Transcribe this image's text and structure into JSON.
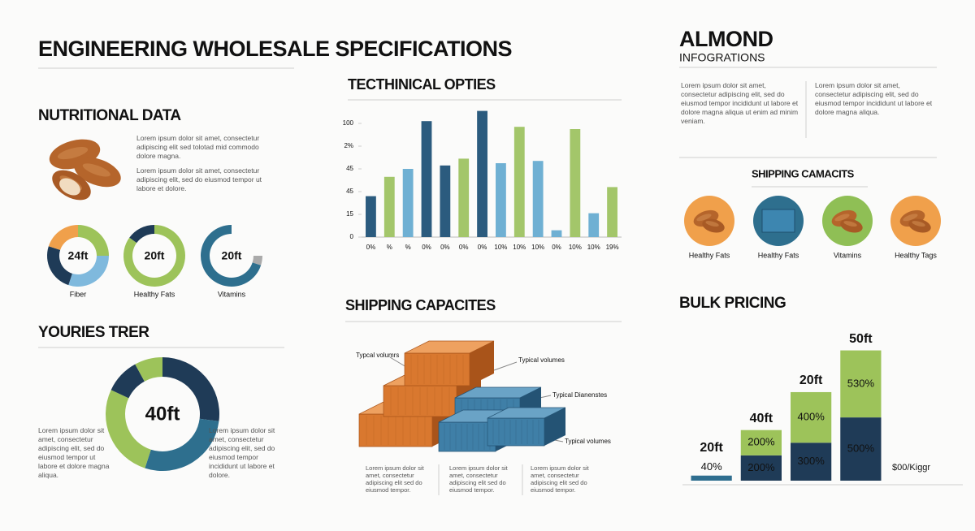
{
  "title": "ENGINEERING WHOLESALE SPECIFICATIONS",
  "nutritional": {
    "heading": "NUTRITIONAL DATA",
    "paragraphs": [
      "Lorem ipsum dolor sit amet, consectetur adipiscing elit sed tolotad mid commodo dolore magna.",
      "Lorem ipsum dolor sit amet, consectetur adipiscing elit, sed do eiusmod tempor ut labore et dolore."
    ]
  },
  "youries": {
    "heading": "YOURIES TRER",
    "left_text": "Lorem ipsum dolor sit amet, consectetur adipiscing elit, sed do eiusmod tempor ut labore et dolore magna aliqua.",
    "right_text": "Lorem ipsum dolor sit amet, consectetur adipiscing elit, sed do eiusmod tempor incididunt ut labore et dolore."
  },
  "shipping": {
    "heading": "SHIPPING CAPACITES",
    "callouts": [
      "Typcal volumrs",
      "Typical volumes",
      "Typical Dianenstes",
      "Typical volumes"
    ],
    "columns": [
      "Lorem ipsum dolor sit amet, consectetur adipiscing elit sed do eiusmod tempor.",
      "Lorem ipsum dolor sit amet, consectetur adipiscing elit sed do eiusmod tempor.",
      "Lorem ipsum dolor sit amet, consectetur adipiscing elit sed do eiusmod tempor."
    ]
  },
  "almond": {
    "title": "ALMOND",
    "subtitle": "INFOGRATIONS",
    "columns": [
      "Lorem ipsum dolor sit amet, consectetur adipiscing elit, sed do eiusmod tempor incididunt ut labore et dolore magna aliqua ut enim ad minim veniam.",
      "Lorem ipsum dolor sit amet, consectetur adipiscing elit, sed do eiusmod tempor incididunt ut labore et dolore magna aliqua."
    ]
  },
  "shipping_icons": {
    "heading": "SHIPPING CAMACITS",
    "labels": [
      "Healthy Fats",
      "Healthy Fats",
      "Vitamins",
      "Healthy Tags"
    ]
  },
  "chart_data": [
    {
      "type": "pie",
      "center_label": "24ft",
      "caption": "Fiber",
      "values": [
        25,
        30,
        25,
        20
      ],
      "colors": [
        "#9dc35a",
        "#7fb9dd",
        "#1f3b57",
        "#f0a04b"
      ]
    },
    {
      "type": "pie",
      "center_label": "20ft",
      "caption": "Healthy Fats",
      "values": [
        85,
        15
      ],
      "colors": [
        "#9dc35a",
        "#1f3b57"
      ]
    },
    {
      "type": "pie",
      "center_label": "20ft",
      "caption": "Vitamins",
      "values": [
        25,
        5,
        70
      ],
      "colors": [
        "none",
        "#aaaaaa",
        "#2e6f8e"
      ]
    },
    {
      "type": "bar",
      "title": "TECTHINICAL OPTIES",
      "categories": [
        "0%",
        "%",
        "%",
        "0%",
        "0%",
        "0%",
        "0%",
        "10%",
        "10%",
        "10%",
        "0%",
        "10%",
        "10%",
        "19%"
      ],
      "values": [
        36,
        53,
        60,
        102,
        63,
        69,
        111,
        65,
        97,
        67,
        6,
        95,
        21,
        44
      ],
      "colors": [
        "#2b5b7e",
        "#a3c66a",
        "#6fb0d3",
        "#2b5b7e",
        "#2b5b7e",
        "#a3c66a",
        "#2b5b7e",
        "#6fb0d3",
        "#a3c66a",
        "#6fb0d3",
        "#6fb0d3",
        "#a3c66a",
        "#6fb0d3",
        "#a3c66a"
      ],
      "ylim": [
        0,
        115
      ],
      "yticks": [
        0,
        {
          "value": 20,
          "label": "15"
        },
        {
          "value": 40,
          "label": "45"
        },
        {
          "value": 60,
          "label": "45"
        },
        {
          "value": 80,
          "label": "2%"
        },
        100
      ],
      "grid": false
    },
    {
      "type": "pie",
      "title": "YOURIES TRER",
      "center_label": "40ft",
      "values": [
        27,
        28,
        27,
        10,
        8
      ],
      "colors": [
        "#1f3b57",
        "#2e6f8e",
        "#9dc35a",
        "#1f3b57",
        "#9dc35a"
      ]
    },
    {
      "type": "bar",
      "stacked": true,
      "title": "BULK PRICING",
      "categories": [
        "20ft",
        "40ft",
        "20ft",
        "50ft"
      ],
      "series": [
        {
          "color": "#1f3b57",
          "colors": [
            "#2f6e8f",
            "#1f3b57",
            "#1f3b57",
            "#1f3b57"
          ],
          "values": [
            40,
            200,
            300,
            500
          ],
          "value_labels": [
            "40%",
            "200%",
            "300%",
            "500%"
          ]
        },
        {
          "color": "#9dc35a",
          "values": [
            null,
            200,
            400,
            530
          ],
          "value_labels": [
            null,
            "200%",
            "400%",
            "530%"
          ]
        }
      ],
      "ylim": [
        0,
        1040
      ],
      "unit_label": "$00/Kiggr"
    }
  ]
}
